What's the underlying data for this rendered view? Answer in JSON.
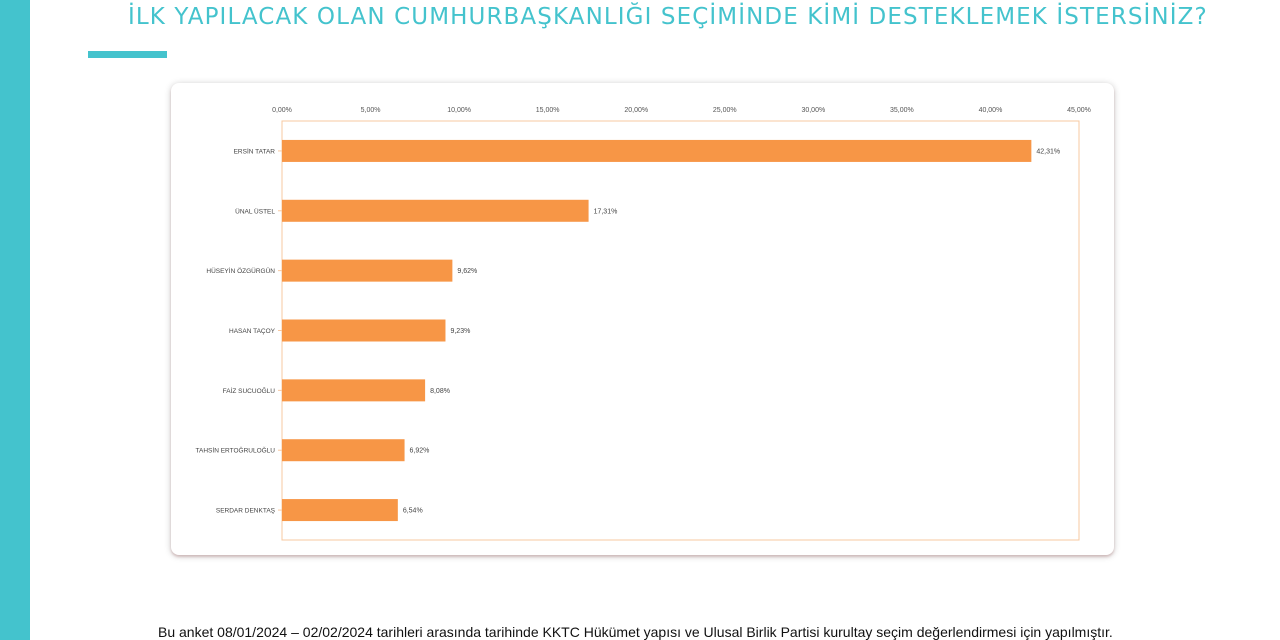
{
  "page": {
    "title": "İLK YAPILACAK OLAN CUMHURBAŞKANLIĞI SEÇİMİNDE KİMİ DESTEKLEMEK İSTERSİNİZ?",
    "footnote": "Bu anket 08/01/2024 – 02/02/2024 tarihleri arasında tarihinde KKTC Hükümet yapısı ve Ulusal Birlik Partisi kurultay seçim değerlendirmesi için yapılmıştır."
  },
  "colors": {
    "accent": "#44c3cd",
    "bar": "#f79646",
    "plot_border": "#f7c8a0",
    "grid": "#fbe0cc"
  },
  "chart_data": {
    "type": "bar",
    "orientation": "horizontal",
    "title": "",
    "xlabel": "",
    "ylabel": "",
    "xlim": [
      0,
      45
    ],
    "xticks": [
      0,
      5,
      10,
      15,
      20,
      25,
      30,
      35,
      40,
      45
    ],
    "xtick_labels": [
      "0,00%",
      "5,00%",
      "10,00%",
      "15,00%",
      "20,00%",
      "25,00%",
      "30,00%",
      "35,00%",
      "40,00%",
      "45,00%"
    ],
    "x_axis_position": "top",
    "grid": false,
    "legend": "none",
    "categories": [
      "ERSİN TATAR",
      "ÜNAL ÜSTEL",
      "HÜSEYİN ÖZGÜRGÜN",
      "HASAN TAÇOY",
      "FAİZ SUCUOĞLU",
      "TAHSİN ERTOĞRULOĞLU",
      "SERDAR DENKTAŞ"
    ],
    "values": [
      42.31,
      17.31,
      9.62,
      9.23,
      8.08,
      6.92,
      6.54
    ],
    "data_labels": [
      "42,31%",
      "17,31%",
      "9,62%",
      "9,23%",
      "8,08%",
      "6,92%",
      "6,54%"
    ]
  }
}
